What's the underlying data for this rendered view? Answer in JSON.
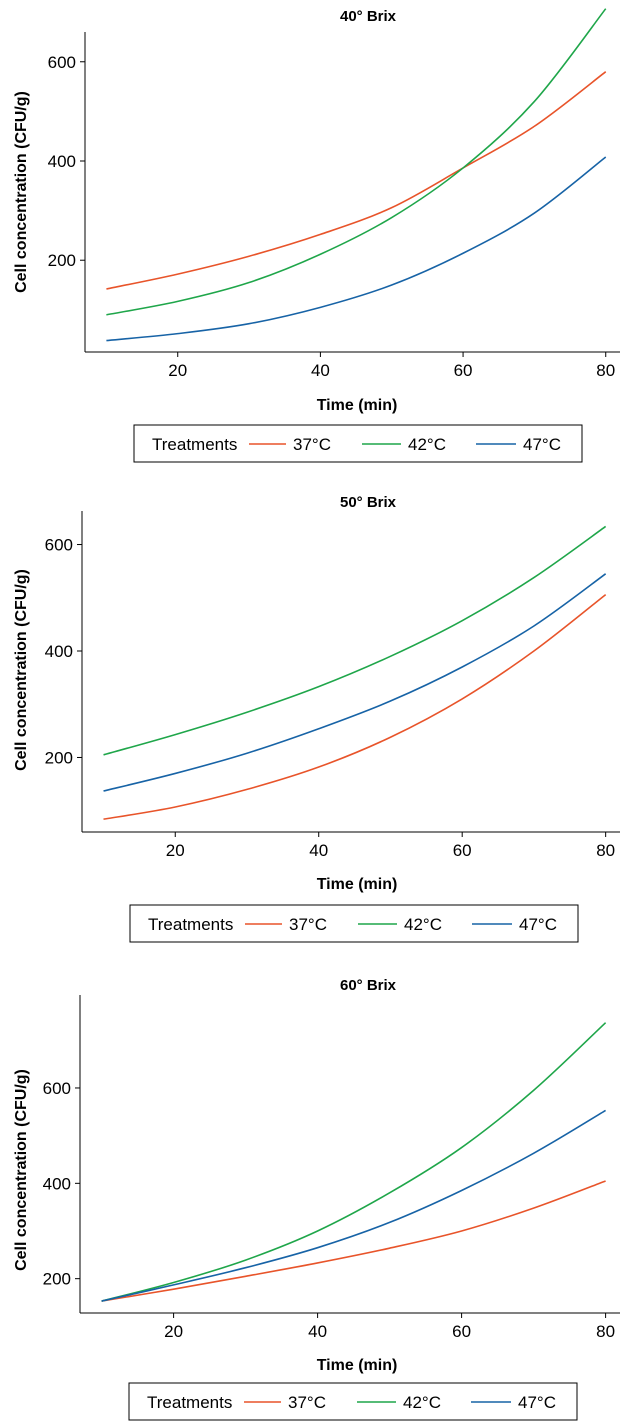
{
  "legend": {
    "title": "Treatments",
    "entries": [
      "37°C",
      "42°C",
      "47°C"
    ]
  },
  "colors": {
    "37°C": "#e8542a",
    "42°C": "#1fa64a",
    "47°C": "#1763a6"
  },
  "chart_data": [
    {
      "type": "line",
      "title": "40° Brix",
      "xlabel": "Time (min)",
      "ylabel": "Cell concentration (CFU/g)",
      "xlim": [
        7,
        82
      ],
      "ylim": [
        15,
        660
      ],
      "xticks": [
        20,
        40,
        60,
        80
      ],
      "yticks": [
        200,
        400,
        600
      ],
      "x": [
        10,
        20,
        30,
        40,
        50,
        60,
        70,
        80
      ],
      "series": [
        {
          "name": "37°C",
          "values": [
            142,
            172,
            208,
            252,
            306,
            386,
            470,
            580
          ]
        },
        {
          "name": "42°C",
          "values": [
            90,
            117,
            155,
            212,
            286,
            386,
            520,
            707
          ]
        },
        {
          "name": "47°C",
          "values": [
            38,
            52,
            72,
            105,
            150,
            214,
            295,
            408
          ]
        }
      ]
    },
    {
      "type": "line",
      "title": "50° Brix",
      "xlabel": "Time (min)",
      "ylabel": "Cell concentration (CFU/g)",
      "xlim": [
        7,
        82
      ],
      "ylim": [
        60,
        663
      ],
      "xticks": [
        20,
        40,
        60,
        80
      ],
      "yticks": [
        200,
        400,
        600
      ],
      "x": [
        10,
        20,
        30,
        40,
        50,
        60,
        70,
        80
      ],
      "series": [
        {
          "name": "37°C",
          "values": [
            84,
            107,
            140,
            182,
            238,
            310,
            400,
            506
          ]
        },
        {
          "name": "42°C",
          "values": [
            205,
            243,
            285,
            333,
            390,
            457,
            538,
            634
          ]
        },
        {
          "name": "47°C",
          "values": [
            137,
            170,
            208,
            254,
            306,
            370,
            447,
            545
          ]
        }
      ]
    },
    {
      "type": "line",
      "title": "60° Brix",
      "xlabel": "Time (min)",
      "ylabel": "Cell concentration (CFU/g)",
      "xlim": [
        7,
        82
      ],
      "ylim": [
        128,
        795
      ],
      "xticks": [
        20,
        40,
        60,
        80
      ],
      "yticks": [
        200,
        400,
        600
      ],
      "x": [
        10,
        20,
        30,
        40,
        50,
        60,
        70,
        80
      ],
      "series": [
        {
          "name": "37°C",
          "values": [
            153,
            178,
            205,
            233,
            264,
            300,
            348,
            405
          ]
        },
        {
          "name": "42°C",
          "values": [
            153,
            192,
            239,
            300,
            380,
            475,
            595,
            737
          ]
        },
        {
          "name": "47°C",
          "values": [
            153,
            187,
            223,
            265,
            318,
            385,
            463,
            553
          ]
        }
      ]
    }
  ]
}
